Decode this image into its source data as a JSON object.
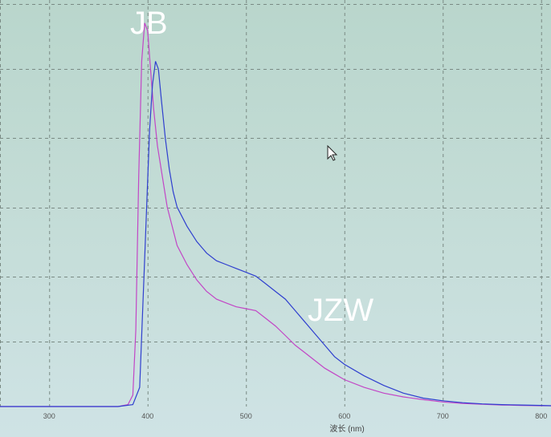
{
  "chart_data": {
    "type": "line",
    "xlabel": "波长 (nm)",
    "ylabel": "",
    "xlim": [
      250,
      810
    ],
    "ylim": [
      0,
      1.06
    ],
    "x_ticks": [
      300,
      400,
      500,
      600,
      700,
      800
    ],
    "grid": true,
    "annotations": [
      "JB",
      "JZW"
    ],
    "series": [
      {
        "name": "JB",
        "color": "#c246c6",
        "x": [
          250,
          370,
          380,
          385,
          388,
          391,
          394,
          397,
          400,
          403,
          406,
          410,
          415,
          420,
          430,
          440,
          450,
          460,
          470,
          480,
          490,
          500,
          510,
          520,
          530,
          540,
          550,
          560,
          570,
          580,
          590,
          600,
          620,
          640,
          660,
          680,
          700,
          720,
          740,
          760,
          780,
          800,
          810
        ],
        "y": [
          0.0,
          0.0,
          0.005,
          0.03,
          0.2,
          0.6,
          0.9,
          1.0,
          0.98,
          0.88,
          0.78,
          0.68,
          0.6,
          0.52,
          0.42,
          0.37,
          0.33,
          0.3,
          0.28,
          0.27,
          0.26,
          0.255,
          0.25,
          0.23,
          0.21,
          0.185,
          0.16,
          0.14,
          0.12,
          0.1,
          0.085,
          0.07,
          0.05,
          0.035,
          0.025,
          0.018,
          0.012,
          0.008,
          0.006,
          0.004,
          0.003,
          0.002,
          0.002
        ]
      },
      {
        "name": "JZW",
        "color": "#2f3fcf",
        "x": [
          250,
          370,
          385,
          392,
          398,
          402,
          405,
          408,
          411,
          414,
          418,
          422,
          426,
          430,
          440,
          450,
          460,
          470,
          480,
          490,
          500,
          510,
          520,
          530,
          540,
          550,
          560,
          570,
          580,
          590,
          600,
          620,
          640,
          660,
          680,
          700,
          720,
          740,
          760,
          780,
          800,
          810
        ],
        "y": [
          0.0,
          0.0,
          0.005,
          0.05,
          0.45,
          0.72,
          0.84,
          0.9,
          0.88,
          0.8,
          0.7,
          0.62,
          0.56,
          0.52,
          0.47,
          0.43,
          0.4,
          0.38,
          0.37,
          0.36,
          0.35,
          0.34,
          0.32,
          0.3,
          0.28,
          0.25,
          0.22,
          0.19,
          0.16,
          0.13,
          0.11,
          0.08,
          0.055,
          0.035,
          0.022,
          0.015,
          0.01,
          0.007,
          0.005,
          0.004,
          0.003,
          0.002
        ]
      }
    ]
  }
}
